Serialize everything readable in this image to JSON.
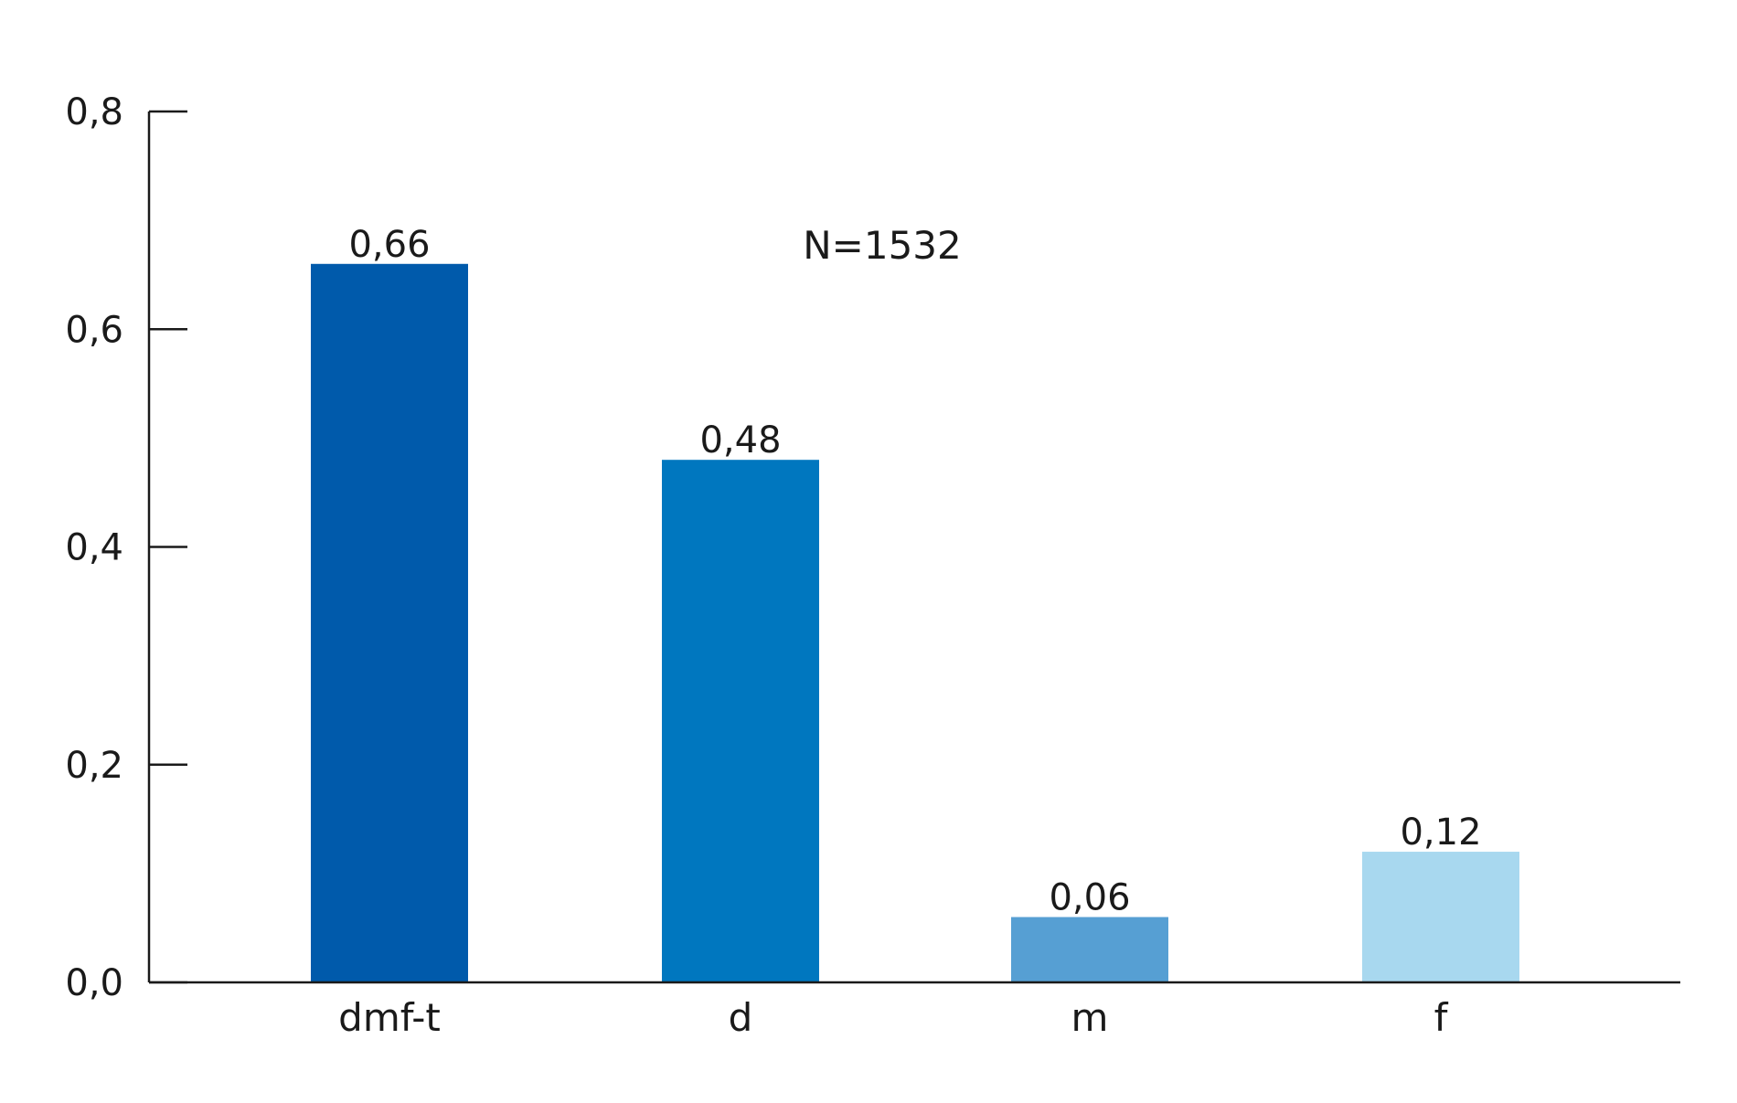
{
  "chart_data": {
    "type": "bar",
    "categories": [
      "dmf-t",
      "d",
      "m",
      "f"
    ],
    "values": [
      0.66,
      0.48,
      0.06,
      0.12
    ],
    "value_labels": [
      "0,66",
      "0,48",
      "0,06",
      "0,12"
    ],
    "colors": [
      "#005aab",
      "#0077bf",
      "#569fd3",
      "#a8d8ef"
    ],
    "ylim": [
      0,
      0.8
    ],
    "yticks": [
      0.0,
      0.2,
      0.4,
      0.6,
      0.8
    ],
    "ytick_labels": [
      "0,0",
      "0,2",
      "0,4",
      "0,6",
      "0,8"
    ],
    "annotation": "N=1532",
    "title": "",
    "xlabel": "",
    "ylabel": "",
    "grid": false,
    "legend": "none"
  }
}
